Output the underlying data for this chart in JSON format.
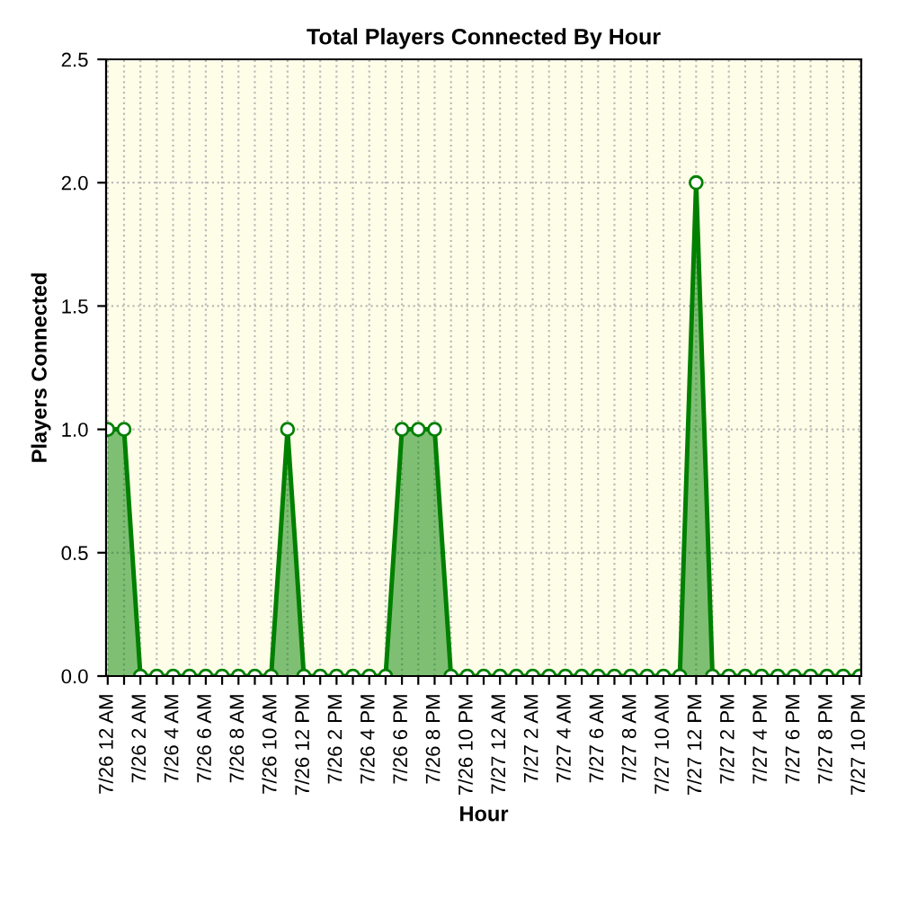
{
  "chart_data": {
    "type": "area",
    "title": "Total Players Connected By Hour",
    "xlabel": "Hour",
    "ylabel": "Players Connected",
    "categories": [
      "7/26 12 AM",
      null,
      "7/26 2 AM",
      null,
      "7/26 4 AM",
      null,
      "7/26 6 AM",
      null,
      "7/26 8 AM",
      null,
      "7/26 10 AM",
      null,
      "7/26 12 PM",
      null,
      "7/26 2 PM",
      null,
      "7/26 4 PM",
      null,
      "7/26 6 PM",
      null,
      "7/26 8 PM",
      null,
      "7/26 10 PM",
      null,
      "7/27 12 AM",
      null,
      "7/27 2 AM",
      null,
      "7/27 4 AM",
      null,
      "7/27 6 AM",
      null,
      "7/27 8 AM",
      null,
      "7/27 10 AM",
      null,
      "7/27 12 PM",
      null,
      "7/27 2 PM",
      null,
      "7/27 4 PM",
      null,
      "7/27 6 PM",
      null,
      "7/27 8 PM",
      null,
      "7/27 10 PM"
    ],
    "series": [
      {
        "color": "#008000",
        "values": [
          1,
          1,
          0,
          0,
          0,
          0,
          0,
          0,
          0,
          0,
          0,
          1,
          0,
          0,
          0,
          0,
          0,
          0,
          1,
          1,
          1,
          0,
          0,
          0,
          0,
          0,
          0,
          0,
          0,
          0,
          0,
          0,
          0,
          0,
          0,
          0,
          2,
          0,
          0,
          0,
          0,
          0,
          0,
          0,
          0,
          0,
          0
        ]
      }
    ],
    "ylim": [
      0,
      2.5
    ],
    "yticks": [
      {
        "value": 0,
        "label": "0.0"
      },
      {
        "value": 0.5,
        "label": "0.5"
      },
      {
        "value": 1,
        "label": "1.0"
      },
      {
        "value": 1.5,
        "label": "1.5"
      },
      {
        "value": 2,
        "label": "2.0"
      },
      {
        "value": 2.5,
        "label": "2.5"
      }
    ],
    "grid": true,
    "marker": "circle"
  }
}
